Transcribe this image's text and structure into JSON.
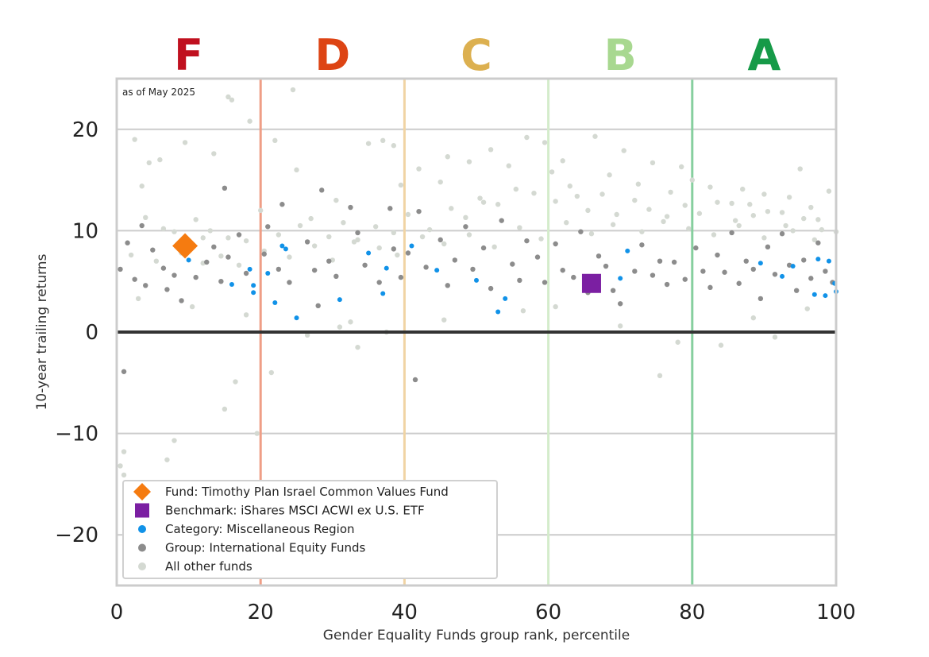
{
  "chart_data": {
    "type": "scatter",
    "title": "",
    "note": "as of May 2025",
    "xlabel": "Gender Equality Funds group rank, percentile",
    "ylabel": "10-year trailing returns",
    "xlim": [
      0,
      100
    ],
    "ylim": [
      -25,
      25
    ],
    "xticks": [
      0,
      20,
      40,
      60,
      80,
      100
    ],
    "xtick_labels": [
      "0",
      "20",
      "40",
      "60",
      "80",
      "100"
    ],
    "yticks": [
      -20,
      -10,
      0,
      10,
      20
    ],
    "ytick_labels": [
      "−20",
      "−10",
      "0",
      "10",
      "20"
    ],
    "grid": true,
    "zero_line": true,
    "grades": [
      {
        "label": "F",
        "x": 10,
        "color": "#c0101f",
        "boundary": 20,
        "boundary_color": "#ef9e86"
      },
      {
        "label": "D",
        "x": 30,
        "color": "#dd4414",
        "boundary": 40,
        "boundary_color": "#f0d4a4"
      },
      {
        "label": "C",
        "x": 50,
        "color": "#dcb050",
        "boundary": 60,
        "boundary_color": "#d4eccb"
      },
      {
        "label": "B",
        "x": 70,
        "color": "#a8d890",
        "boundary": 80,
        "boundary_color": "#86cf9e"
      },
      {
        "label": "A",
        "x": 90,
        "color": "#169a48",
        "boundary": 100,
        "boundary_color": "#d4ecd8"
      }
    ],
    "legend_position": "lower-left",
    "series": [
      {
        "name": "Fund: Timothy Plan Israel Common Values Fund",
        "marker": "diamond",
        "color": "#f57b10",
        "points": [
          [
            9.5,
            8.5
          ]
        ]
      },
      {
        "name": "Benchmark: iShares MSCI ACWI ex U.S. ETF",
        "marker": "square",
        "color": "#7b1fa2",
        "points": [
          [
            66,
            4.8
          ]
        ]
      },
      {
        "name": "Category: Miscellaneous Region",
        "marker": "dot",
        "color": "#1192e8",
        "points": [
          [
            10,
            7.1
          ],
          [
            16,
            4.7
          ],
          [
            18.5,
            6.2
          ],
          [
            19,
            4.6
          ],
          [
            19,
            3.9
          ],
          [
            21,
            5.8
          ],
          [
            22,
            2.9
          ],
          [
            23,
            8.5
          ],
          [
            23.5,
            8.2
          ],
          [
            25,
            1.4
          ],
          [
            31,
            3.2
          ],
          [
            35,
            7.8
          ],
          [
            37,
            3.8
          ],
          [
            37.5,
            6.3
          ],
          [
            41,
            8.5
          ],
          [
            44.5,
            6.1
          ],
          [
            50,
            5.1
          ],
          [
            54,
            3.3
          ],
          [
            53,
            2.0
          ],
          [
            70,
            5.3
          ],
          [
            71,
            8.0
          ],
          [
            89.5,
            6.8
          ],
          [
            92.5,
            5.5
          ],
          [
            94,
            6.5
          ],
          [
            97,
            3.7
          ],
          [
            97.5,
            7.2
          ],
          [
            98.5,
            3.6
          ],
          [
            99,
            7.0
          ],
          [
            99.8,
            4.8
          ],
          [
            100,
            4.0
          ]
        ]
      },
      {
        "name": "Group: International Equity Funds",
        "marker": "dot",
        "color": "#8c8c8c",
        "points": [
          [
            0.5,
            6.2
          ],
          [
            1,
            -3.9
          ],
          [
            1.5,
            8.8
          ],
          [
            2.5,
            5.2
          ],
          [
            3.5,
            10.5
          ],
          [
            4,
            4.6
          ],
          [
            5,
            8.1
          ],
          [
            6.5,
            6.3
          ],
          [
            7,
            4.2
          ],
          [
            8,
            5.6
          ],
          [
            9,
            3.1
          ],
          [
            11,
            5.4
          ],
          [
            12.5,
            6.9
          ],
          [
            13.5,
            8.4
          ],
          [
            14.5,
            5.0
          ],
          [
            15,
            14.2
          ],
          [
            15.5,
            7.4
          ],
          [
            17,
            9.6
          ],
          [
            18,
            5.8
          ],
          [
            20.5,
            7.7
          ],
          [
            21,
            10.4
          ],
          [
            22.5,
            6.2
          ],
          [
            23,
            12.6
          ],
          [
            24,
            4.9
          ],
          [
            26.5,
            8.9
          ],
          [
            27.5,
            6.1
          ],
          [
            28,
            2.6
          ],
          [
            28.5,
            14.0
          ],
          [
            29.5,
            7.0
          ],
          [
            30.5,
            5.5
          ],
          [
            32.5,
            12.3
          ],
          [
            33.5,
            9.8
          ],
          [
            34.5,
            6.6
          ],
          [
            36.5,
            4.9
          ],
          [
            38,
            12.2
          ],
          [
            38.5,
            8.2
          ],
          [
            39.5,
            5.4
          ],
          [
            40.5,
            7.8
          ],
          [
            41.5,
            -4.7
          ],
          [
            42,
            11.9
          ],
          [
            43,
            6.4
          ],
          [
            45,
            9.1
          ],
          [
            46,
            4.6
          ],
          [
            47,
            7.1
          ],
          [
            48.5,
            10.4
          ],
          [
            49.5,
            6.2
          ],
          [
            51,
            8.3
          ],
          [
            52,
            4.3
          ],
          [
            53.5,
            11.0
          ],
          [
            55,
            6.7
          ],
          [
            56,
            5.1
          ],
          [
            57,
            9.0
          ],
          [
            58.5,
            7.4
          ],
          [
            59.5,
            4.9
          ],
          [
            61,
            8.7
          ],
          [
            62,
            6.1
          ],
          [
            63.5,
            5.4
          ],
          [
            64.5,
            9.9
          ],
          [
            65.5,
            3.9
          ],
          [
            67,
            7.5
          ],
          [
            68,
            6.5
          ],
          [
            69,
            4.1
          ],
          [
            70,
            2.8
          ],
          [
            72,
            6.0
          ],
          [
            73,
            8.6
          ],
          [
            74.5,
            5.6
          ],
          [
            75.5,
            7.0
          ],
          [
            76.5,
            4.7
          ],
          [
            77.5,
            6.9
          ],
          [
            79,
            5.2
          ],
          [
            80.5,
            8.3
          ],
          [
            81.5,
            6.0
          ],
          [
            82.5,
            4.4
          ],
          [
            83.5,
            7.6
          ],
          [
            84.5,
            5.9
          ],
          [
            85.5,
            9.8
          ],
          [
            86.5,
            4.8
          ],
          [
            87.5,
            7.0
          ],
          [
            88.5,
            6.2
          ],
          [
            89.5,
            3.3
          ],
          [
            90.5,
            8.4
          ],
          [
            91.5,
            5.7
          ],
          [
            92.5,
            9.7
          ],
          [
            93.5,
            6.6
          ],
          [
            94.5,
            4.1
          ],
          [
            95.5,
            7.1
          ],
          [
            96.5,
            5.3
          ],
          [
            97.5,
            8.8
          ],
          [
            98.5,
            6.0
          ],
          [
            99.5,
            4.9
          ]
        ]
      },
      {
        "name": "All other funds",
        "marker": "dot",
        "color": "#d4d9d2",
        "points": [
          [
            0.5,
            -13.2
          ],
          [
            1,
            -14.1
          ],
          [
            1,
            -11.8
          ],
          [
            2.5,
            19.0
          ],
          [
            3.5,
            14.4
          ],
          [
            4.5,
            16.7
          ],
          [
            6,
            17.0
          ],
          [
            7,
            -12.6
          ],
          [
            8,
            -10.7
          ],
          [
            9.5,
            18.7
          ],
          [
            12,
            9.3
          ],
          [
            13.5,
            17.6
          ],
          [
            15.5,
            23.2
          ],
          [
            16,
            22.9
          ],
          [
            16.5,
            -4.9
          ],
          [
            15,
            -7.6
          ],
          [
            18.5,
            20.8
          ],
          [
            19.5,
            -10.0
          ],
          [
            21.5,
            -4.0
          ],
          [
            24.5,
            23.9
          ],
          [
            22,
            18.9
          ],
          [
            25,
            16.0
          ],
          [
            30.5,
            13.0
          ],
          [
            32.5,
            1.0
          ],
          [
            33.5,
            -1.5
          ],
          [
            35,
            18.6
          ],
          [
            37,
            18.9
          ],
          [
            38.5,
            18.4
          ],
          [
            39.5,
            14.5
          ],
          [
            42,
            16.1
          ],
          [
            45,
            14.8
          ],
          [
            46,
            17.3
          ],
          [
            49,
            16.8
          ],
          [
            51,
            12.8
          ],
          [
            52,
            18.0
          ],
          [
            54.5,
            16.4
          ],
          [
            57,
            19.2
          ],
          [
            59.5,
            18.7
          ],
          [
            60.5,
            15.8
          ],
          [
            62,
            16.9
          ],
          [
            64,
            13.4
          ],
          [
            66.5,
            19.3
          ],
          [
            68.5,
            15.5
          ],
          [
            70.5,
            17.9
          ],
          [
            72.5,
            14.6
          ],
          [
            74.5,
            16.7
          ],
          [
            75.5,
            -4.3
          ],
          [
            77,
            13.8
          ],
          [
            78.5,
            16.3
          ],
          [
            80,
            15.0
          ],
          [
            82.5,
            14.3
          ],
          [
            84,
            -1.3
          ],
          [
            85.5,
            12.7
          ],
          [
            87,
            14.1
          ],
          [
            88.5,
            11.5
          ],
          [
            90,
            13.6
          ],
          [
            91.5,
            -0.5
          ],
          [
            92.5,
            11.8
          ],
          [
            93.5,
            13.3
          ],
          [
            95,
            16.1
          ],
          [
            96.5,
            12.3
          ],
          [
            97.5,
            11.1
          ],
          [
            99,
            13.9
          ],
          [
            100,
            9.9
          ],
          [
            4,
            11.3
          ],
          [
            6.5,
            10.2
          ],
          [
            8,
            9.9
          ],
          [
            11,
            11.1
          ],
          [
            13,
            10.0
          ],
          [
            15.5,
            9.3
          ],
          [
            18,
            9.0
          ],
          [
            20,
            12.0
          ],
          [
            22.5,
            9.6
          ],
          [
            25.5,
            10.5
          ],
          [
            27,
            11.2
          ],
          [
            29.5,
            9.4
          ],
          [
            31.5,
            10.8
          ],
          [
            33.5,
            9.1
          ],
          [
            36,
            10.4
          ],
          [
            38.5,
            9.8
          ],
          [
            40.5,
            11.6
          ],
          [
            43.5,
            10.1
          ],
          [
            46.5,
            12.2
          ],
          [
            48.5,
            11.3
          ],
          [
            50.5,
            13.2
          ],
          [
            53,
            12.6
          ],
          [
            55.5,
            14.1
          ],
          [
            58,
            13.7
          ],
          [
            61,
            12.9
          ],
          [
            63,
            14.4
          ],
          [
            65.5,
            12.0
          ],
          [
            67.5,
            13.6
          ],
          [
            69.5,
            11.6
          ],
          [
            72,
            13.0
          ],
          [
            74,
            12.1
          ],
          [
            76.5,
            11.4
          ],
          [
            79,
            12.5
          ],
          [
            81,
            11.7
          ],
          [
            83.5,
            12.8
          ],
          [
            86,
            11.0
          ],
          [
            88,
            12.6
          ],
          [
            90.5,
            11.9
          ],
          [
            93,
            10.5
          ],
          [
            95.5,
            11.2
          ],
          [
            98,
            10.1
          ],
          [
            2,
            7.6
          ],
          [
            5.5,
            7.0
          ],
          [
            9,
            7.8
          ],
          [
            12,
            6.8
          ],
          [
            14.5,
            7.5
          ],
          [
            17,
            6.6
          ],
          [
            20.5,
            8.0
          ],
          [
            24,
            7.4
          ],
          [
            27.5,
            8.5
          ],
          [
            30,
            7.1
          ],
          [
            33,
            8.9
          ],
          [
            36.5,
            8.3
          ],
          [
            39,
            7.6
          ],
          [
            42.5,
            9.4
          ],
          [
            45.5,
            8.7
          ],
          [
            49,
            9.6
          ],
          [
            52.5,
            8.4
          ],
          [
            56,
            10.3
          ],
          [
            59,
            9.2
          ],
          [
            62.5,
            10.8
          ],
          [
            66,
            9.7
          ],
          [
            69,
            10.6
          ],
          [
            73,
            9.9
          ],
          [
            76,
            10.9
          ],
          [
            79.5,
            10.2
          ],
          [
            83,
            9.6
          ],
          [
            86.5,
            10.5
          ],
          [
            90,
            9.3
          ],
          [
            94,
            10.0
          ],
          [
            97,
            9.1
          ],
          [
            3,
            3.3
          ],
          [
            10.5,
            2.5
          ],
          [
            18,
            1.7
          ],
          [
            26.5,
            -0.3
          ],
          [
            31,
            0.5
          ],
          [
            37.5,
            0.0
          ],
          [
            45.5,
            1.2
          ],
          [
            56.5,
            2.1
          ],
          [
            61,
            2.5
          ],
          [
            70,
            0.6
          ],
          [
            78,
            -1.0
          ],
          [
            88.5,
            1.4
          ],
          [
            96,
            2.3
          ]
        ]
      }
    ]
  }
}
